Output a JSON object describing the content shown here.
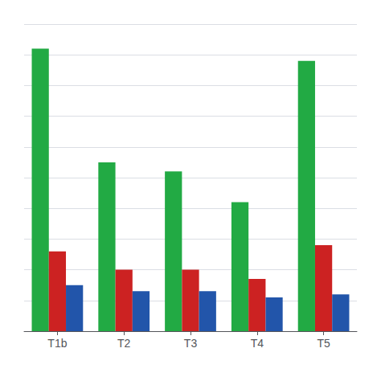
{
  "chart_data": {
    "type": "bar",
    "categories": [
      "T1b",
      "T2",
      "T3",
      "T4",
      "T5"
    ],
    "series": [
      {
        "color": "#22AA44",
        "values": [
          92,
          55,
          52,
          42,
          88
        ]
      },
      {
        "color": "#CC2222",
        "values": [
          26,
          20,
          20,
          17,
          28
        ]
      },
      {
        "color": "#2255AA",
        "values": [
          15,
          13,
          13,
          11,
          12
        ]
      }
    ],
    "ylim": [
      0,
      100
    ],
    "yticks": [
      0,
      10,
      20,
      30,
      40,
      50,
      60,
      70,
      80,
      90,
      100
    ],
    "grid": true,
    "tick_labels": "x"
  }
}
